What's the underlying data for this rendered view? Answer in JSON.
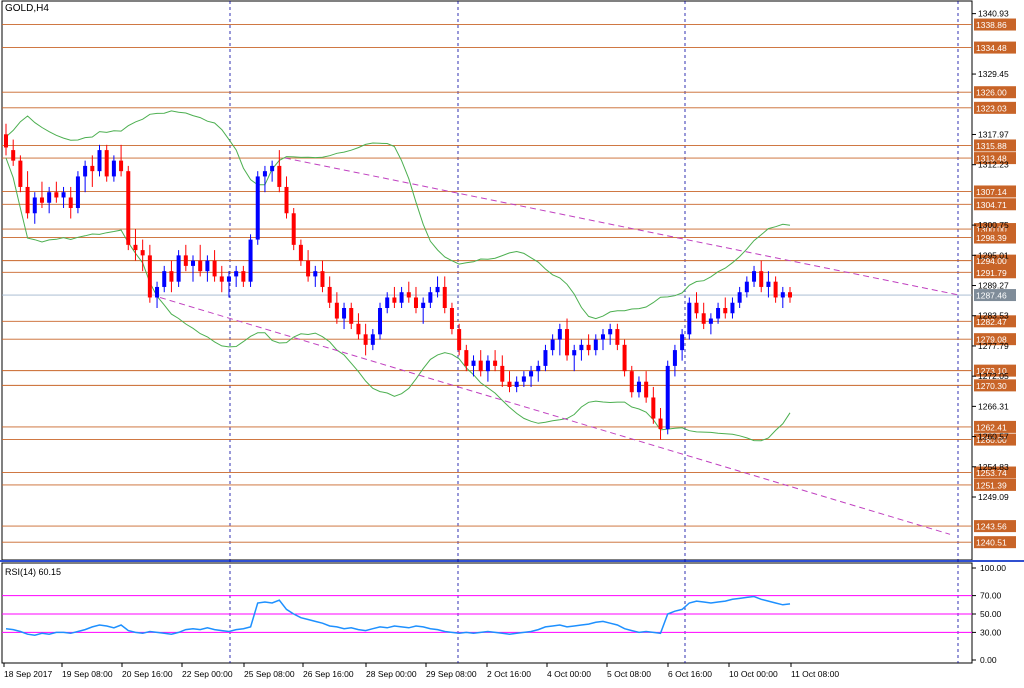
{
  "chart_data": [
    {
      "type": "line",
      "chart_kind": "candlestick",
      "title": "GOLD,H4",
      "ylim": [
        1237.5,
        1342.0
      ],
      "grid": false,
      "x_tick_labels": [
        "18 Sep 2017",
        "19 Sep 08:00",
        "20 Sep 16:00",
        "22 Sep 00:00",
        "25 Sep 08:00",
        "26 Sep 16:00",
        "28 Sep 00:00",
        "29 Sep 08:00",
        "2 Oct 16:00",
        "4 Oct 00:00",
        "5 Oct 08:00",
        "6 Oct 16:00",
        "10 Oct 00:00",
        "11 Oct 08:00"
      ],
      "y_tick_labels": [
        "1340.93",
        "1329.45",
        "1317.97",
        "1312.23",
        "1300.75",
        "1295.01",
        "1289.27",
        "1283.53",
        "1277.79",
        "1272.05",
        "1266.31",
        "1260.57",
        "1254.83",
        "1249.09"
      ],
      "horizontal_levels": [
        1338.86,
        1334.48,
        1326.0,
        1323.03,
        1315.88,
        1313.48,
        1307.14,
        1304.71,
        1300.0,
        1298.39,
        1294.0,
        1291.79,
        1282.47,
        1279.08,
        1273.1,
        1270.3,
        1262.41,
        1260.0,
        1253.74,
        1251.39,
        1243.56,
        1240.51
      ],
      "current_price": "1287.46",
      "colors": {
        "bull": "#0000ff",
        "bear": "#ff0000",
        "level": "#c86428",
        "bollinger": "#4caf50",
        "trendline": "#c040c0",
        "price_tag": "#c86428"
      },
      "candles": [
        {
          "o": 1318,
          "h": 1320,
          "l": 1314,
          "c": 1315.5
        },
        {
          "o": 1315,
          "h": 1317,
          "l": 1312,
          "c": 1313
        },
        {
          "o": 1313,
          "h": 1314,
          "l": 1307,
          "c": 1308
        },
        {
          "o": 1308,
          "h": 1311,
          "l": 1302,
          "c": 1303
        },
        {
          "o": 1303,
          "h": 1307,
          "l": 1301,
          "c": 1306
        },
        {
          "o": 1306,
          "h": 1309,
          "l": 1304,
          "c": 1305
        },
        {
          "o": 1305,
          "h": 1308,
          "l": 1303,
          "c": 1307
        },
        {
          "o": 1307,
          "h": 1309,
          "l": 1305,
          "c": 1306
        },
        {
          "o": 1306,
          "h": 1308,
          "l": 1304,
          "c": 1307
        },
        {
          "o": 1306,
          "h": 1308,
          "l": 1302,
          "c": 1304
        },
        {
          "o": 1304,
          "h": 1311,
          "l": 1303,
          "c": 1310
        },
        {
          "o": 1310,
          "h": 1313,
          "l": 1307,
          "c": 1312
        },
        {
          "o": 1312,
          "h": 1314,
          "l": 1308,
          "c": 1311
        },
        {
          "o": 1311,
          "h": 1316,
          "l": 1310,
          "c": 1315
        },
        {
          "o": 1315,
          "h": 1316,
          "l": 1309,
          "c": 1310
        },
        {
          "o": 1310,
          "h": 1314,
          "l": 1309,
          "c": 1313
        },
        {
          "o": 1313,
          "h": 1316,
          "l": 1310,
          "c": 1311
        },
        {
          "o": 1311,
          "h": 1312,
          "l": 1296,
          "c": 1297
        },
        {
          "o": 1297,
          "h": 1300,
          "l": 1294,
          "c": 1296
        },
        {
          "o": 1296,
          "h": 1298,
          "l": 1292,
          "c": 1295
        },
        {
          "o": 1295,
          "h": 1297,
          "l": 1286,
          "c": 1287
        },
        {
          "o": 1287,
          "h": 1290,
          "l": 1285,
          "c": 1289
        },
        {
          "o": 1289,
          "h": 1293,
          "l": 1288,
          "c": 1292
        },
        {
          "o": 1292,
          "h": 1294,
          "l": 1288,
          "c": 1290
        },
        {
          "o": 1290,
          "h": 1296,
          "l": 1289,
          "c": 1295
        },
        {
          "o": 1295,
          "h": 1297,
          "l": 1292,
          "c": 1293
        },
        {
          "o": 1293,
          "h": 1295,
          "l": 1290,
          "c": 1294
        },
        {
          "o": 1294,
          "h": 1297,
          "l": 1291,
          "c": 1292
        },
        {
          "o": 1292,
          "h": 1295,
          "l": 1290,
          "c": 1294
        },
        {
          "o": 1294,
          "h": 1296,
          "l": 1290,
          "c": 1291
        },
        {
          "o": 1291,
          "h": 1293,
          "l": 1288,
          "c": 1290
        },
        {
          "o": 1290,
          "h": 1292,
          "l": 1287,
          "c": 1291
        },
        {
          "o": 1291,
          "h": 1293,
          "l": 1289,
          "c": 1292
        },
        {
          "o": 1292,
          "h": 1293,
          "l": 1289,
          "c": 1290
        },
        {
          "o": 1290,
          "h": 1299,
          "l": 1289,
          "c": 1298
        },
        {
          "o": 1298,
          "h": 1311,
          "l": 1297,
          "c": 1310
        },
        {
          "o": 1310,
          "h": 1312,
          "l": 1307,
          "c": 1311
        },
        {
          "o": 1311,
          "h": 1313,
          "l": 1309,
          "c": 1312
        },
        {
          "o": 1312,
          "h": 1315,
          "l": 1307,
          "c": 1308
        },
        {
          "o": 1308,
          "h": 1310,
          "l": 1302,
          "c": 1303
        },
        {
          "o": 1303,
          "h": 1304,
          "l": 1296,
          "c": 1297
        },
        {
          "o": 1297,
          "h": 1298,
          "l": 1293,
          "c": 1294
        },
        {
          "o": 1294,
          "h": 1296,
          "l": 1290,
          "c": 1291
        },
        {
          "o": 1291,
          "h": 1293,
          "l": 1289,
          "c": 1292
        },
        {
          "o": 1292,
          "h": 1294,
          "l": 1288,
          "c": 1289
        },
        {
          "o": 1289,
          "h": 1291,
          "l": 1285,
          "c": 1286
        },
        {
          "o": 1286,
          "h": 1288,
          "l": 1282,
          "c": 1283
        },
        {
          "o": 1283,
          "h": 1286,
          "l": 1281,
          "c": 1285
        },
        {
          "o": 1285,
          "h": 1286,
          "l": 1281,
          "c": 1282
        },
        {
          "o": 1282,
          "h": 1284,
          "l": 1279,
          "c": 1280
        },
        {
          "o": 1280,
          "h": 1282,
          "l": 1276,
          "c": 1278
        },
        {
          "o": 1278,
          "h": 1281,
          "l": 1277,
          "c": 1280
        },
        {
          "o": 1280,
          "h": 1286,
          "l": 1279,
          "c": 1285
        },
        {
          "o": 1285,
          "h": 1288,
          "l": 1284,
          "c": 1287
        },
        {
          "o": 1287,
          "h": 1289,
          "l": 1285,
          "c": 1286
        },
        {
          "o": 1286,
          "h": 1289,
          "l": 1285,
          "c": 1288
        },
        {
          "o": 1288,
          "h": 1290,
          "l": 1286,
          "c": 1287
        },
        {
          "o": 1287,
          "h": 1289,
          "l": 1284,
          "c": 1285
        },
        {
          "o": 1285,
          "h": 1287,
          "l": 1282,
          "c": 1286
        },
        {
          "o": 1286,
          "h": 1289,
          "l": 1285,
          "c": 1288
        },
        {
          "o": 1288,
          "h": 1291,
          "l": 1287,
          "c": 1289
        },
        {
          "o": 1289,
          "h": 1291,
          "l": 1284,
          "c": 1285
        },
        {
          "o": 1285,
          "h": 1286,
          "l": 1280,
          "c": 1281
        },
        {
          "o": 1281,
          "h": 1282,
          "l": 1276,
          "c": 1277
        },
        {
          "o": 1277,
          "h": 1278,
          "l": 1273,
          "c": 1274
        },
        {
          "o": 1274,
          "h": 1276,
          "l": 1272,
          "c": 1275
        },
        {
          "o": 1275,
          "h": 1277,
          "l": 1272,
          "c": 1273
        },
        {
          "o": 1273,
          "h": 1276,
          "l": 1271,
          "c": 1275
        },
        {
          "o": 1275,
          "h": 1277,
          "l": 1273,
          "c": 1274
        },
        {
          "o": 1274,
          "h": 1276,
          "l": 1270,
          "c": 1271
        },
        {
          "o": 1271,
          "h": 1273,
          "l": 1269,
          "c": 1270
        },
        {
          "o": 1270,
          "h": 1272,
          "l": 1269,
          "c": 1271
        },
        {
          "o": 1271,
          "h": 1273,
          "l": 1270,
          "c": 1272
        },
        {
          "o": 1272,
          "h": 1274,
          "l": 1270,
          "c": 1273
        },
        {
          "o": 1273,
          "h": 1275,
          "l": 1271,
          "c": 1274
        },
        {
          "o": 1274,
          "h": 1278,
          "l": 1273,
          "c": 1277
        },
        {
          "o": 1277,
          "h": 1280,
          "l": 1276,
          "c": 1279
        },
        {
          "o": 1279,
          "h": 1282,
          "l": 1276,
          "c": 1281
        },
        {
          "o": 1281,
          "h": 1283,
          "l": 1275,
          "c": 1276
        },
        {
          "o": 1276,
          "h": 1278,
          "l": 1273,
          "c": 1277
        },
        {
          "o": 1277,
          "h": 1279,
          "l": 1275,
          "c": 1278
        },
        {
          "o": 1278,
          "h": 1280,
          "l": 1276,
          "c": 1277
        },
        {
          "o": 1277,
          "h": 1280,
          "l": 1276,
          "c": 1279
        },
        {
          "o": 1279,
          "h": 1281,
          "l": 1277,
          "c": 1280
        },
        {
          "o": 1280,
          "h": 1282,
          "l": 1278,
          "c": 1281
        },
        {
          "o": 1281,
          "h": 1282,
          "l": 1277,
          "c": 1278
        },
        {
          "o": 1278,
          "h": 1279,
          "l": 1272,
          "c": 1273
        },
        {
          "o": 1273,
          "h": 1274,
          "l": 1268,
          "c": 1269
        },
        {
          "o": 1269,
          "h": 1272,
          "l": 1268,
          "c": 1271
        },
        {
          "o": 1271,
          "h": 1273,
          "l": 1267,
          "c": 1268
        },
        {
          "o": 1268,
          "h": 1270,
          "l": 1263,
          "c": 1264
        },
        {
          "o": 1264,
          "h": 1266,
          "l": 1260,
          "c": 1262
        },
        {
          "o": 1262,
          "h": 1275,
          "l": 1261,
          "c": 1274
        },
        {
          "o": 1274,
          "h": 1278,
          "l": 1272,
          "c": 1277
        },
        {
          "o": 1277,
          "h": 1281,
          "l": 1275,
          "c": 1280
        },
        {
          "o": 1280,
          "h": 1287,
          "l": 1279,
          "c": 1286
        },
        {
          "o": 1286,
          "h": 1288,
          "l": 1283,
          "c": 1284
        },
        {
          "o": 1284,
          "h": 1286,
          "l": 1281,
          "c": 1282
        },
        {
          "o": 1282,
          "h": 1284,
          "l": 1280,
          "c": 1283
        },
        {
          "o": 1283,
          "h": 1286,
          "l": 1282,
          "c": 1285
        },
        {
          "o": 1285,
          "h": 1287,
          "l": 1283,
          "c": 1284
        },
        {
          "o": 1284,
          "h": 1287,
          "l": 1283,
          "c": 1286
        },
        {
          "o": 1286,
          "h": 1289,
          "l": 1285,
          "c": 1288
        },
        {
          "o": 1288,
          "h": 1291,
          "l": 1287,
          "c": 1290
        },
        {
          "o": 1290,
          "h": 1293,
          "l": 1289,
          "c": 1292
        },
        {
          "o": 1292,
          "h": 1294,
          "l": 1288,
          "c": 1289
        },
        {
          "o": 1289,
          "h": 1292,
          "l": 1287,
          "c": 1290
        },
        {
          "o": 1290,
          "h": 1291,
          "l": 1286,
          "c": 1287
        },
        {
          "o": 1287,
          "h": 1289,
          "l": 1285,
          "c": 1288
        },
        {
          "o": 1288,
          "h": 1289,
          "l": 1286,
          "c": 1287
        }
      ]
    },
    {
      "type": "line",
      "title": "RSI(14) 60.15",
      "ylim": [
        0,
        100
      ],
      "y_tick_labels": [
        "100.00",
        "70.00",
        "50.00",
        "30.00",
        "0.00"
      ],
      "levels": [
        70,
        50,
        30
      ],
      "series": [
        {
          "values": [
            34,
            33,
            31,
            28,
            27,
            29,
            28,
            30,
            30,
            29,
            31,
            33,
            36,
            38,
            37,
            35,
            38,
            32,
            30,
            29,
            31,
            30,
            29,
            28,
            30,
            33,
            34,
            33,
            35,
            33,
            32,
            31,
            33,
            34,
            36,
            62,
            63,
            62,
            65,
            55,
            50,
            46,
            44,
            42,
            40,
            37,
            36,
            34,
            35,
            33,
            32,
            34,
            36,
            35,
            37,
            36,
            35,
            37,
            36,
            34,
            33,
            31,
            30,
            29,
            30,
            29,
            30,
            31,
            30,
            29,
            28,
            29,
            30,
            31,
            33,
            36,
            37,
            38,
            36,
            37,
            38,
            39,
            41,
            42,
            40,
            38,
            34,
            32,
            30,
            31,
            30,
            29,
            50,
            53,
            55,
            62,
            64,
            63,
            62,
            63,
            64,
            66,
            67,
            68,
            69,
            66,
            64,
            62,
            60,
            61
          ]
        }
      ]
    }
  ]
}
